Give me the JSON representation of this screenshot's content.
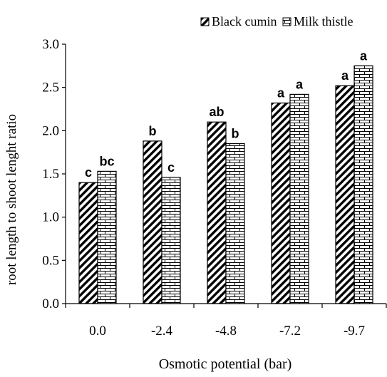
{
  "chart_data": {
    "type": "bar",
    "title": "",
    "xlabel": "Osmotic potential (bar)",
    "ylabel": "root length to shoot lenght ratio",
    "categories": [
      "0.0",
      "-2.4",
      "-4.8",
      "-7.2",
      "-9.7"
    ],
    "ylim": [
      0.0,
      3.0
    ],
    "yticks": [
      "0.0",
      "0.5",
      "1.0",
      "1.5",
      "2.0",
      "2.5",
      "3.0"
    ],
    "grid": false,
    "legend_position": "top-right",
    "series": [
      {
        "name": "Black cumin",
        "pattern": "diagonal-hatch",
        "values": [
          1.4,
          1.88,
          2.1,
          2.32,
          2.52
        ],
        "significance_labels": [
          "c",
          "b",
          "ab",
          "a",
          "a"
        ]
      },
      {
        "name": "Milk thistle",
        "pattern": "brick",
        "values": [
          1.53,
          1.46,
          1.85,
          2.42,
          2.75
        ],
        "significance_labels": [
          "bc",
          "c",
          "b",
          "a",
          "a"
        ]
      }
    ],
    "colors": {
      "bar_fill": "#ffffff",
      "ink": "#000000"
    }
  }
}
